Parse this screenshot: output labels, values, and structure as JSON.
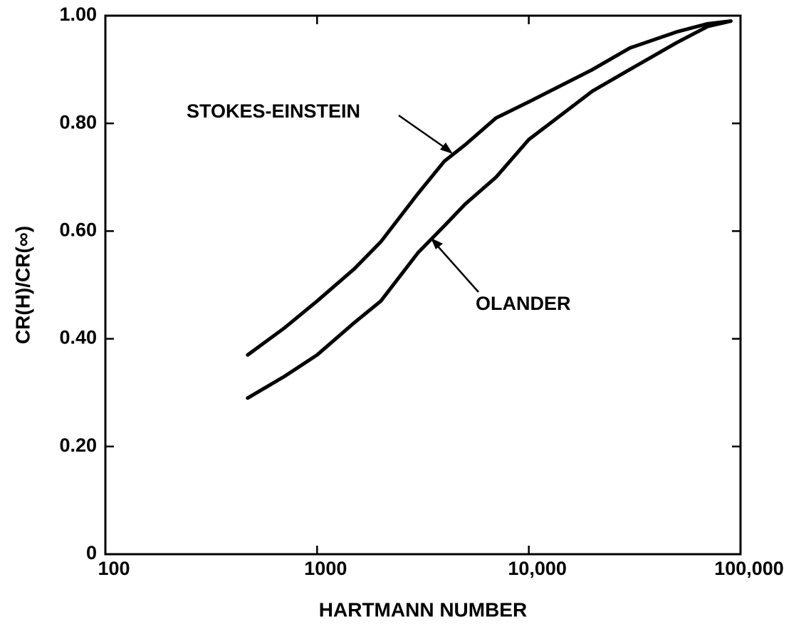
{
  "chart_data": {
    "type": "line",
    "xlabel": "HARTMANN NUMBER",
    "ylabel": "CR(H)/CR(∞)",
    "xscale": "log",
    "xlim": [
      100,
      100000
    ],
    "xticks": [
      100,
      1000,
      {
        "value": 10000,
        "label": "10,000"
      },
      {
        "value": 100000,
        "label": "100,000"
      }
    ],
    "ylim": [
      0,
      1
    ],
    "yticks": [
      0,
      {
        "value": 0.2,
        "label": "0.20"
      },
      {
        "value": 0.4,
        "label": "0.40"
      },
      {
        "value": 0.6,
        "label": "0.60"
      },
      {
        "value": 0.8,
        "label": "0.80"
      },
      {
        "value": 1,
        "label": "1.00"
      }
    ],
    "grid": false,
    "x": [
      470,
      700,
      1000,
      1500,
      2000,
      3000,
      4000,
      5000,
      7000,
      10000,
      20000,
      30000,
      50000,
      70000,
      90000
    ],
    "series": [
      {
        "name": "STOKES-EINSTEIN",
        "color": "#000000",
        "values": [
          0.37,
          0.42,
          0.47,
          0.53,
          0.58,
          0.67,
          0.73,
          0.76,
          0.81,
          0.84,
          0.9,
          0.94,
          0.97,
          0.985,
          0.99
        ]
      },
      {
        "name": "OLANDER",
        "color": "#000000",
        "values": [
          0.29,
          0.33,
          0.37,
          0.43,
          0.47,
          0.56,
          0.61,
          0.65,
          0.7,
          0.77,
          0.86,
          0.9,
          0.95,
          0.98,
          0.99
        ]
      }
    ]
  }
}
